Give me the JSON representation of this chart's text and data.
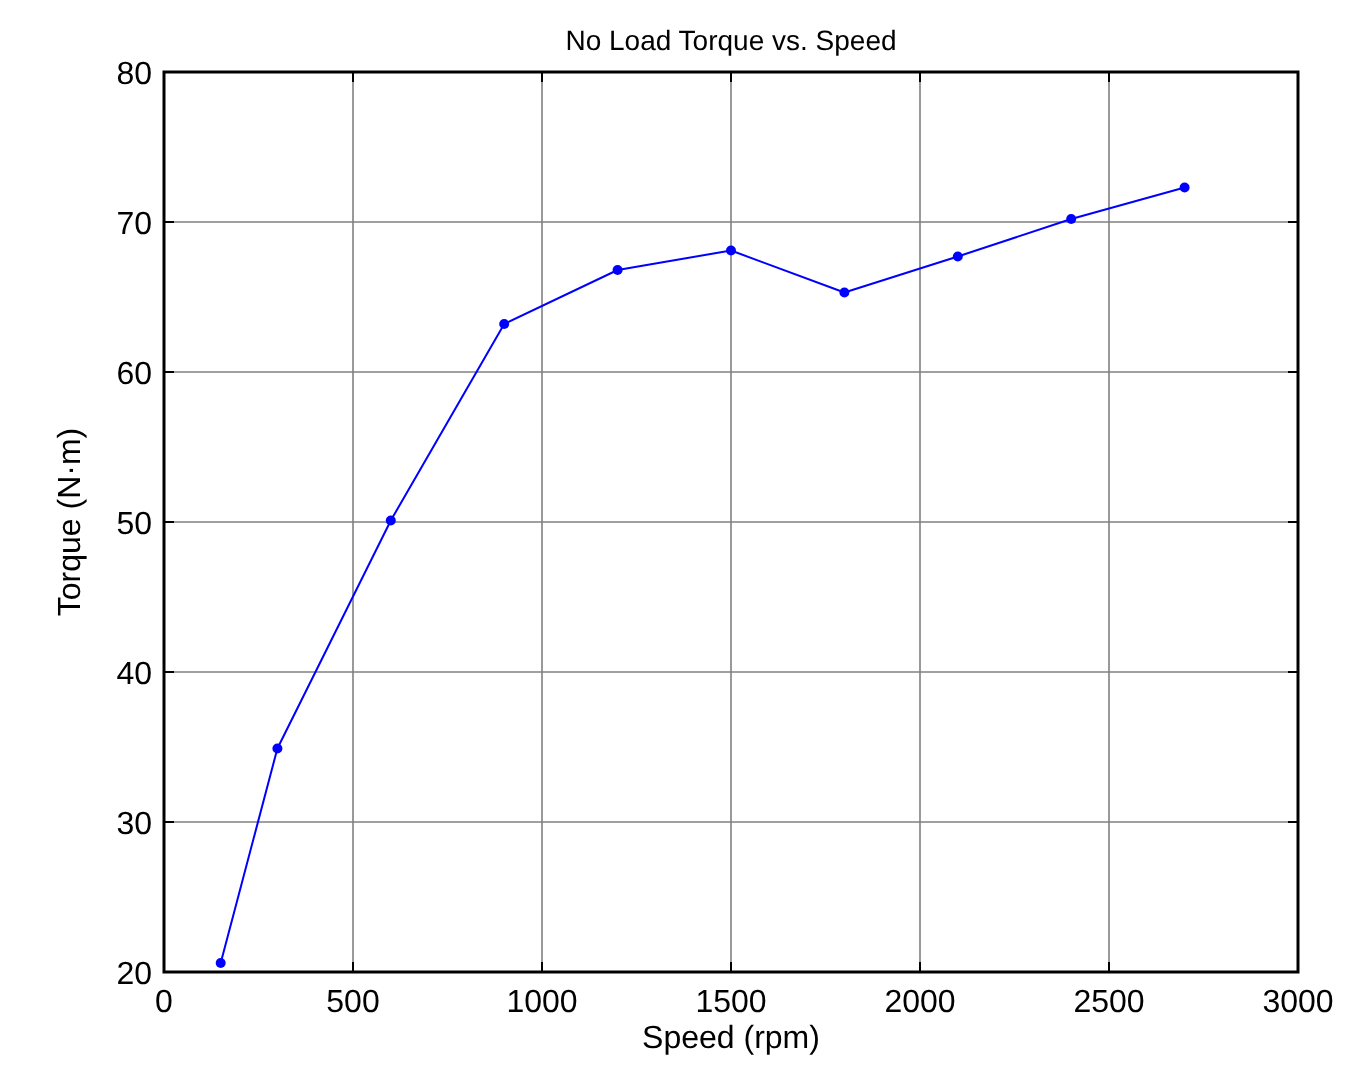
{
  "chart_data": {
    "type": "line",
    "title": "No Load Torque vs. Speed",
    "xlabel": "Speed (rpm)",
    "ylabel": "Torque (N·m)",
    "x": [
      150,
      300,
      600,
      900,
      1200,
      1500,
      1800,
      2100,
      2400,
      2700
    ],
    "series": [
      {
        "color": "#0000ff",
        "values": [
          20.6,
          34.9,
          50.1,
          63.2,
          66.8,
          68.1,
          65.3,
          67.7,
          70.2,
          72.3
        ]
      }
    ],
    "xlim": [
      0,
      3000
    ],
    "xticks": [
      0,
      500,
      1000,
      1500,
      2000,
      2500,
      3000
    ],
    "ylim": [
      20,
      80
    ],
    "yticks": [
      20,
      30,
      40,
      50,
      60,
      70,
      80
    ],
    "grid": true,
    "marker": "circle",
    "line_style": "solid"
  }
}
